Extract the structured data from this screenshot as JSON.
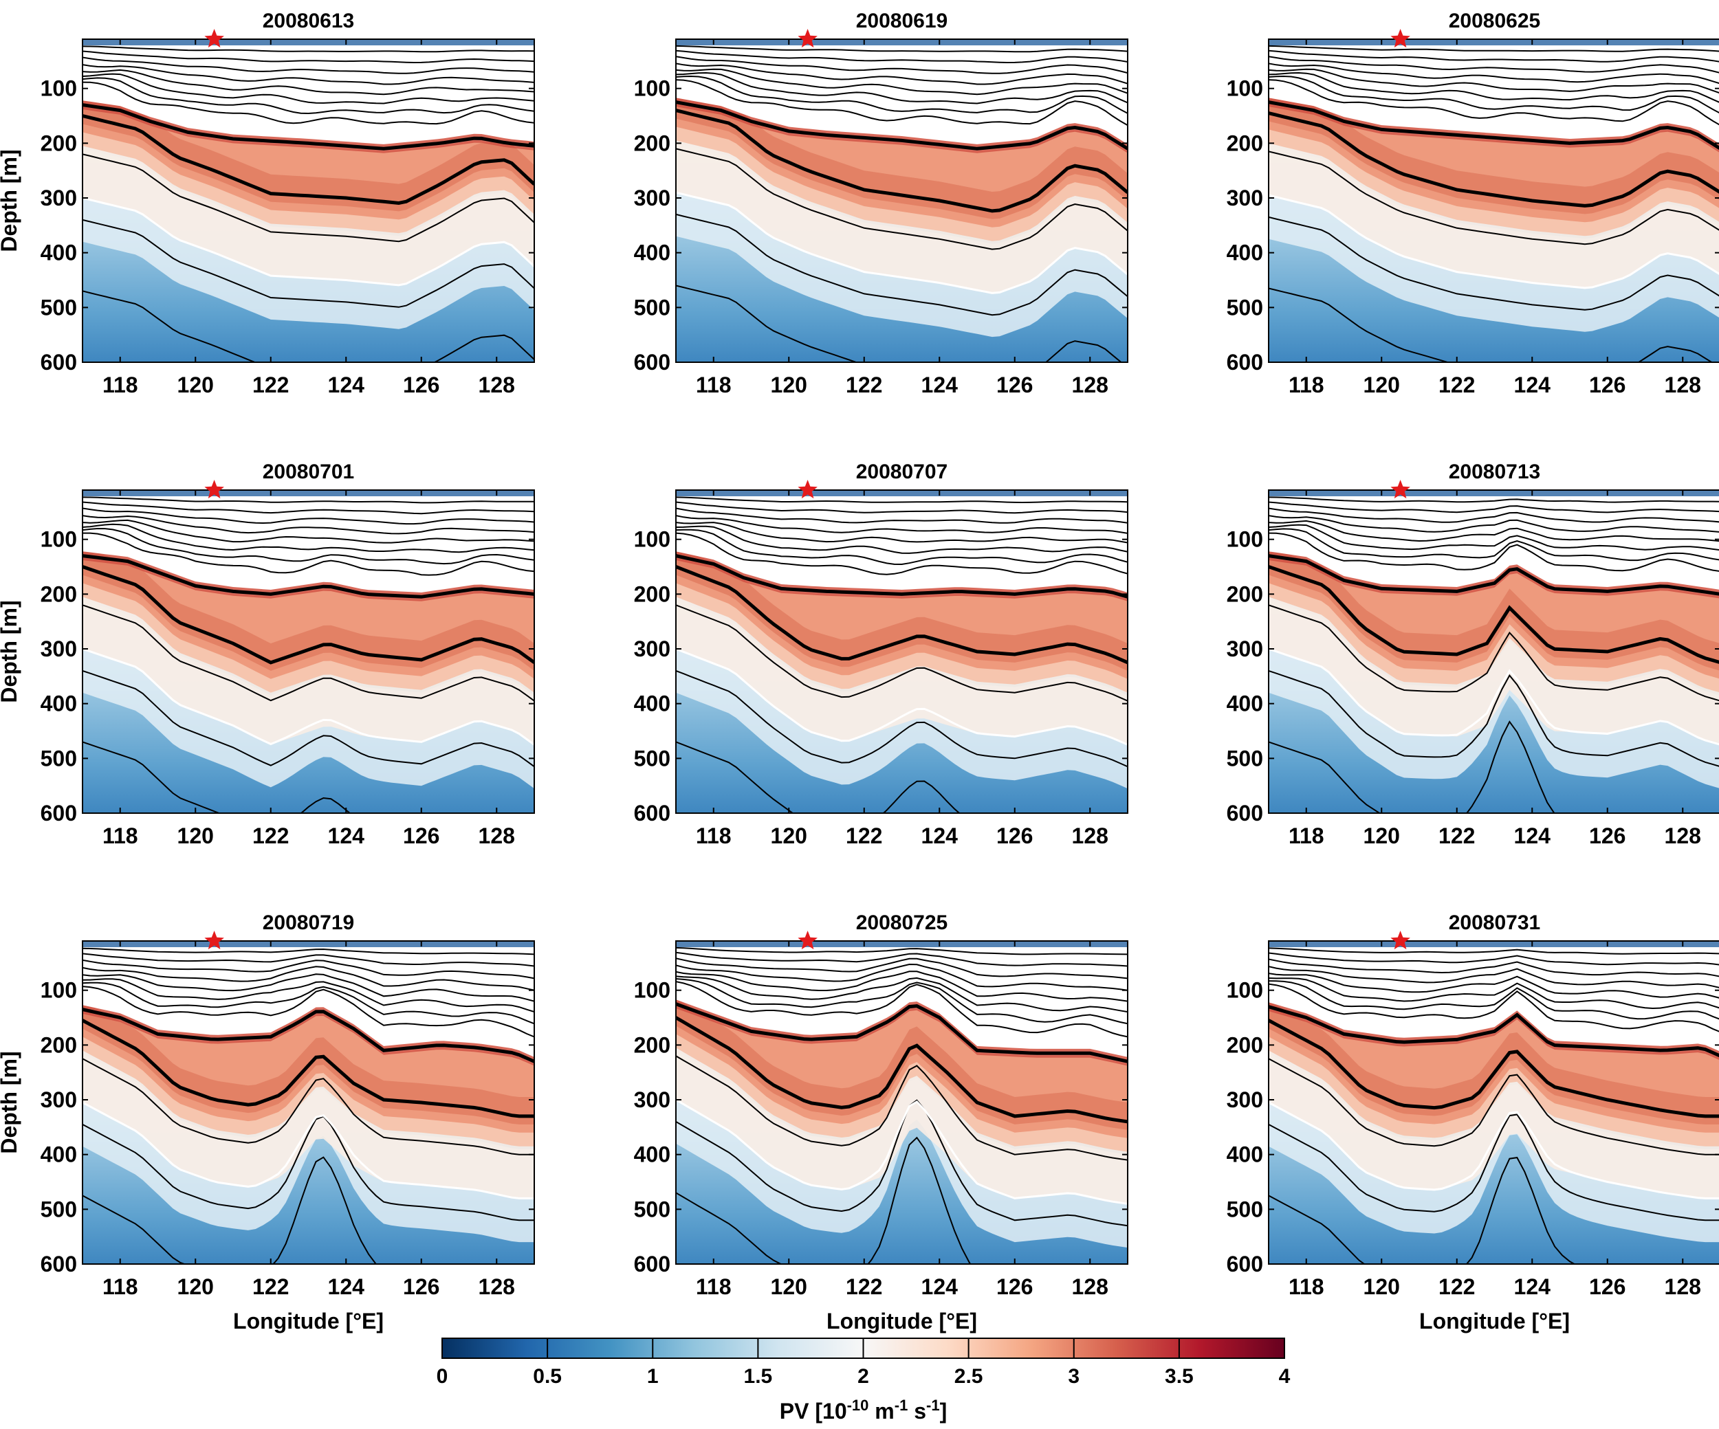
{
  "chart_data": {
    "type": "heatmap",
    "layout": "3x3 panel grid of longitude-depth sections",
    "x_label": "Longitude [°E]",
    "y_label": "Depth [m]",
    "x_range": [
      117,
      129
    ],
    "y_range": [
      10,
      600
    ],
    "x_ticks": [
      "118",
      "120",
      "122",
      "124",
      "126",
      "128"
    ],
    "y_ticks": [
      "100",
      "200",
      "300",
      "400",
      "500",
      "600"
    ],
    "star_marker": {
      "longitude": 120.5,
      "depth": 10,
      "color": "#e31a1c"
    },
    "panels": [
      {
        "title": "20080613",
        "upper_iso": [
          [
            117,
            130
          ],
          [
            118,
            140
          ],
          [
            118.8,
            160
          ],
          [
            119.8,
            180
          ],
          [
            121,
            192
          ],
          [
            123,
            200
          ],
          [
            125,
            210
          ],
          [
            126.5,
            200
          ],
          [
            127.5,
            190
          ],
          [
            128.3,
            200
          ],
          [
            129,
            205
          ]
        ],
        "lower_iso": [
          [
            117,
            150
          ],
          [
            118.5,
            175
          ],
          [
            119.5,
            225
          ],
          [
            120.5,
            250
          ],
          [
            122,
            292
          ],
          [
            124,
            300
          ],
          [
            125.5,
            310
          ],
          [
            126.5,
            275
          ],
          [
            127.5,
            235
          ],
          [
            128.3,
            230
          ],
          [
            129,
            275
          ]
        ],
        "bump": [
          122.5,
          0
        ]
      },
      {
        "title": "20080619",
        "upper_iso": [
          [
            117,
            125
          ],
          [
            118.2,
            140
          ],
          [
            119,
            160
          ],
          [
            120,
            178
          ],
          [
            121,
            185
          ],
          [
            123,
            195
          ],
          [
            125,
            210
          ],
          [
            126.5,
            200
          ],
          [
            127.5,
            170
          ],
          [
            128.3,
            180
          ],
          [
            129,
            210
          ]
        ],
        "lower_iso": [
          [
            117,
            140
          ],
          [
            118.5,
            165
          ],
          [
            119.5,
            220
          ],
          [
            120.5,
            250
          ],
          [
            122,
            285
          ],
          [
            124,
            305
          ],
          [
            125.5,
            325
          ],
          [
            126.5,
            300
          ],
          [
            127.5,
            240
          ],
          [
            128.3,
            250
          ],
          [
            129,
            290
          ]
        ],
        "bump": [
          124,
          0
        ]
      },
      {
        "title": "20080625",
        "upper_iso": [
          [
            117,
            125
          ],
          [
            118.2,
            140
          ],
          [
            119,
            160
          ],
          [
            120,
            175
          ],
          [
            121,
            180
          ],
          [
            123,
            190
          ],
          [
            125,
            200
          ],
          [
            126.5,
            195
          ],
          [
            127.5,
            170
          ],
          [
            128.3,
            180
          ],
          [
            129,
            210
          ]
        ],
        "lower_iso": [
          [
            117,
            145
          ],
          [
            118.5,
            170
          ],
          [
            119.5,
            220
          ],
          [
            120.5,
            255
          ],
          [
            122,
            285
          ],
          [
            124,
            305
          ],
          [
            125.5,
            315
          ],
          [
            126.5,
            295
          ],
          [
            127.5,
            250
          ],
          [
            128.3,
            260
          ],
          [
            129,
            290
          ]
        ],
        "bump": [
          124,
          0
        ]
      },
      {
        "title": "20080701",
        "upper_iso": [
          [
            117,
            130
          ],
          [
            118.2,
            140
          ],
          [
            119,
            160
          ],
          [
            120,
            185
          ],
          [
            121,
            195
          ],
          [
            122,
            200
          ],
          [
            123.5,
            185
          ],
          [
            124.5,
            200
          ],
          [
            126,
            205
          ],
          [
            127.5,
            190
          ],
          [
            129,
            200
          ]
        ],
        "lower_iso": [
          [
            117,
            150
          ],
          [
            118.5,
            185
          ],
          [
            119.5,
            250
          ],
          [
            121,
            290
          ],
          [
            122,
            325
          ],
          [
            123.5,
            290
          ],
          [
            124.5,
            310
          ],
          [
            126,
            320
          ],
          [
            127.5,
            280
          ],
          [
            128.5,
            300
          ],
          [
            129,
            325
          ]
        ],
        "bump": [
          123.4,
          25
        ]
      },
      {
        "title": "20080707",
        "upper_iso": [
          [
            117,
            130
          ],
          [
            118,
            145
          ],
          [
            118.8,
            170
          ],
          [
            119.8,
            190
          ],
          [
            121,
            195
          ],
          [
            123,
            200
          ],
          [
            124.5,
            195
          ],
          [
            126,
            200
          ],
          [
            127.5,
            190
          ],
          [
            128.5,
            195
          ],
          [
            129,
            205
          ]
        ],
        "lower_iso": [
          [
            117,
            150
          ],
          [
            118.5,
            190
          ],
          [
            119.5,
            250
          ],
          [
            120.5,
            300
          ],
          [
            121.5,
            320
          ],
          [
            123.5,
            275
          ],
          [
            125,
            305
          ],
          [
            126,
            310
          ],
          [
            127.5,
            290
          ],
          [
            128.5,
            310
          ],
          [
            129,
            325
          ]
        ],
        "bump": [
          123.5,
          35
        ]
      },
      {
        "title": "20080713",
        "upper_iso": [
          [
            117,
            130
          ],
          [
            118,
            140
          ],
          [
            119,
            175
          ],
          [
            120,
            190
          ],
          [
            122,
            195
          ],
          [
            123,
            180
          ],
          [
            123.5,
            150
          ],
          [
            124.5,
            190
          ],
          [
            126,
            195
          ],
          [
            127.5,
            185
          ],
          [
            128.5,
            195
          ],
          [
            129,
            200
          ]
        ],
        "lower_iso": [
          [
            117,
            150
          ],
          [
            118.5,
            185
          ],
          [
            119.5,
            260
          ],
          [
            120.5,
            305
          ],
          [
            122,
            310
          ],
          [
            122.8,
            290
          ],
          [
            123.4,
            225
          ],
          [
            124.5,
            300
          ],
          [
            126,
            305
          ],
          [
            127.5,
            280
          ],
          [
            128.5,
            315
          ],
          [
            129,
            325
          ]
        ],
        "bump": [
          123.4,
          70
        ]
      },
      {
        "title": "20080719",
        "upper_iso": [
          [
            117,
            135
          ],
          [
            118,
            150
          ],
          [
            119,
            180
          ],
          [
            120.5,
            190
          ],
          [
            122,
            185
          ],
          [
            122.7,
            160
          ],
          [
            123.3,
            135
          ],
          [
            124.2,
            170
          ],
          [
            125,
            210
          ],
          [
            126.5,
            200
          ],
          [
            127.5,
            205
          ],
          [
            128.5,
            215
          ],
          [
            129,
            230
          ]
        ],
        "lower_iso": [
          [
            117,
            155
          ],
          [
            118.5,
            210
          ],
          [
            119.5,
            275
          ],
          [
            120.5,
            300
          ],
          [
            121.5,
            310
          ],
          [
            122.3,
            290
          ],
          [
            123.3,
            215
          ],
          [
            124.2,
            270
          ],
          [
            125,
            300
          ],
          [
            126,
            305
          ],
          [
            127.5,
            315
          ],
          [
            128.5,
            330
          ],
          [
            129,
            330
          ]
        ],
        "bump": [
          123.4,
          85
        ]
      },
      {
        "title": "20080725",
        "upper_iso": [
          [
            117,
            125
          ],
          [
            118,
            150
          ],
          [
            119,
            175
          ],
          [
            120.5,
            190
          ],
          [
            121.8,
            185
          ],
          [
            122.7,
            155
          ],
          [
            123.3,
            125
          ],
          [
            124,
            150
          ],
          [
            125,
            210
          ],
          [
            126.5,
            215
          ],
          [
            128,
            215
          ],
          [
            129,
            230
          ]
        ],
        "lower_iso": [
          [
            117,
            150
          ],
          [
            118.5,
            210
          ],
          [
            119.5,
            270
          ],
          [
            120.5,
            305
          ],
          [
            121.5,
            315
          ],
          [
            122.5,
            290
          ],
          [
            123.3,
            195
          ],
          [
            124.2,
            250
          ],
          [
            125,
            305
          ],
          [
            126,
            330
          ],
          [
            127.5,
            320
          ],
          [
            128.5,
            335
          ],
          [
            129,
            340
          ]
        ],
        "bump": [
          123.4,
          95
        ]
      },
      {
        "title": "20080731",
        "upper_iso": [
          [
            117,
            130
          ],
          [
            118,
            150
          ],
          [
            119,
            180
          ],
          [
            120.5,
            195
          ],
          [
            122,
            190
          ],
          [
            123,
            175
          ],
          [
            123.6,
            145
          ],
          [
            124.5,
            200
          ],
          [
            126,
            205
          ],
          [
            127.5,
            210
          ],
          [
            128.5,
            205
          ],
          [
            129,
            220
          ]
        ],
        "lower_iso": [
          [
            117,
            155
          ],
          [
            118.5,
            210
          ],
          [
            119.5,
            280
          ],
          [
            120.5,
            310
          ],
          [
            121.5,
            315
          ],
          [
            122.5,
            295
          ],
          [
            123.5,
            205
          ],
          [
            124.5,
            275
          ],
          [
            126,
            300
          ],
          [
            127.5,
            320
          ],
          [
            128.5,
            330
          ],
          [
            129,
            330
          ]
        ],
        "bump": [
          123.5,
          80
        ]
      }
    ],
    "colorbar": {
      "label_parts": [
        "PV [10",
        "-10",
        " m",
        "-1",
        " s",
        "-1",
        "]"
      ],
      "range": [
        0,
        4
      ],
      "ticks": [
        "0",
        "0.5",
        "1",
        "1.5",
        "2",
        "2.5",
        "3",
        "3.5",
        "4"
      ],
      "colormap_stops": [
        "#053061",
        "#2166ac",
        "#4393c3",
        "#92c5de",
        "#d1e5f0",
        "#f7f7f7",
        "#fddbc7",
        "#f4a582",
        "#d6604d",
        "#b2182b",
        "#67001f"
      ]
    }
  }
}
